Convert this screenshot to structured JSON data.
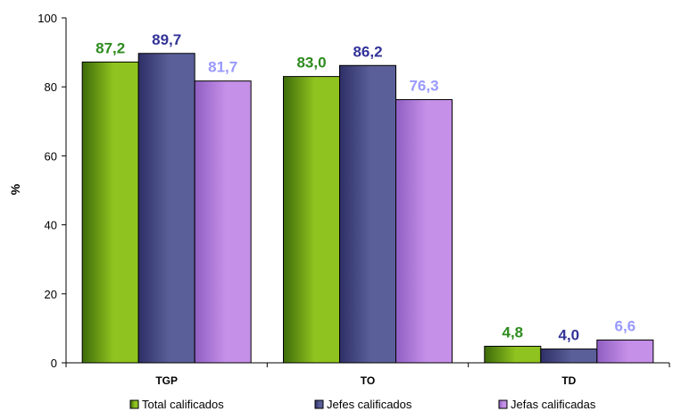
{
  "chart_data": {
    "type": "bar",
    "categories": [
      "TGP",
      "TO",
      "TD"
    ],
    "series": [
      {
        "name": "Total calificados",
        "values": [
          87.2,
          83.0,
          4.8
        ],
        "labels": [
          "87,2",
          "83,0",
          "4,8"
        ]
      },
      {
        "name": "Jefes calificados",
        "values": [
          89.7,
          86.2,
          4.0
        ],
        "labels": [
          "89,7",
          "86,2",
          "4,0"
        ]
      },
      {
        "name": "Jefas calificadas",
        "values": [
          81.7,
          76.3,
          6.6
        ],
        "labels": [
          "81,7",
          "76,3",
          "6,6"
        ]
      }
    ],
    "ylabel": "%",
    "ylim": [
      0,
      100
    ],
    "yticks": [
      0,
      20,
      40,
      60,
      80,
      100
    ],
    "grid": false,
    "legend_position": "bottom"
  },
  "colors": {
    "series_fill": [
      "#8fc31f",
      "#5a5f99",
      "#c590e8"
    ],
    "series_fill_dark": [
      "#3d6b09",
      "#2e2f66",
      "#8f5fc2"
    ],
    "label_colors": [
      "#2e8b1f",
      "#333399",
      "#9999ff"
    ]
  }
}
